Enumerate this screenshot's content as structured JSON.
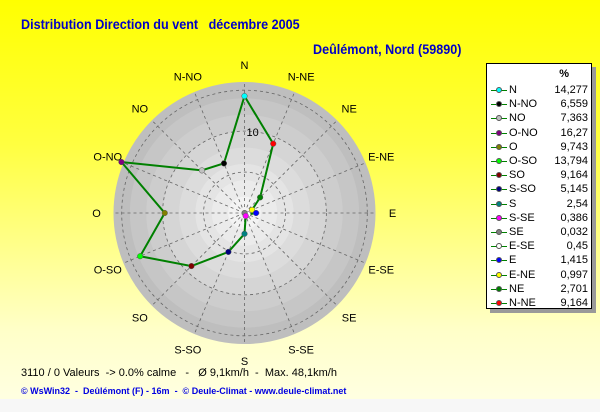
{
  "title": "Distribution Direction du vent   décembre 2005",
  "subtitle": "Deûlémont, Nord (59890)",
  "chart_data": {
    "type": "radar",
    "title": "Distribution Direction du vent   décembre 2005",
    "directions": [
      "N",
      "N-NE",
      "NE",
      "E-NE",
      "E",
      "E-SE",
      "SE",
      "S-SE",
      "S",
      "S-SO",
      "SO",
      "O-SO",
      "O",
      "O-NO",
      "NO",
      "N-NO"
    ],
    "values": [
      14.277,
      9.164,
      2.701,
      0.997,
      1.415,
      0.45,
      0.032,
      0.386,
      2.54,
      5.145,
      9.164,
      13.794,
      9.743,
      16.27,
      7.363,
      6.559
    ],
    "point_colors": [
      "#00ffff",
      "#ff0000",
      "#008000",
      "#ffff00",
      "#0000ff",
      "#ffffff",
      "#808080",
      "#ff00ff",
      "#008080",
      "#000080",
      "#800000",
      "#00ff00",
      "#808000",
      "#800080",
      "#c0c0c0",
      "#000000"
    ],
    "line_color": "#008000",
    "radial_range": [
      0,
      16
    ],
    "radial_tick_label": "10",
    "unit": "%",
    "grid": true
  },
  "legend": {
    "header": "%",
    "items": [
      {
        "name": "N",
        "value": "14,277",
        "color": "#00ffff"
      },
      {
        "name": "N-NO",
        "value": "6,559",
        "color": "#000000"
      },
      {
        "name": "NO",
        "value": "7,363",
        "color": "#c0c0c0"
      },
      {
        "name": "O-NO",
        "value": "16,27",
        "color": "#800080"
      },
      {
        "name": "O",
        "value": "9,743",
        "color": "#808000"
      },
      {
        "name": "O-SO",
        "value": "13,794",
        "color": "#00ff00"
      },
      {
        "name": "SO",
        "value": "9,164",
        "color": "#800000"
      },
      {
        "name": "S-SO",
        "value": "5,145",
        "color": "#000080"
      },
      {
        "name": "S",
        "value": "2,54",
        "color": "#008080"
      },
      {
        "name": "S-SE",
        "value": "0,386",
        "color": "#ff00ff"
      },
      {
        "name": "SE",
        "value": "0,032",
        "color": "#808080"
      },
      {
        "name": "E-SE",
        "value": "0,45",
        "color": "#ffffff"
      },
      {
        "name": "E",
        "value": "1,415",
        "color": "#0000ff"
      },
      {
        "name": "E-NE",
        "value": "0,997",
        "color": "#ffff00"
      },
      {
        "name": "NE",
        "value": "2,701",
        "color": "#008000"
      },
      {
        "name": "N-NE",
        "value": "9,164",
        "color": "#ff0000"
      }
    ]
  },
  "stats": "3110 / 0 Valeurs  -> 0.0% calme   -   Ø 9,1km/h  -  Max. 48,1km/h",
  "footer": "© WsWin32  -  Deûlémont (F) - 16m  -  © Deule-Climat - www.deule-climat.net",
  "colors": {
    "title": "#0000c8",
    "background_top": "#ffff00",
    "background_bottom": "#ffffe0"
  }
}
